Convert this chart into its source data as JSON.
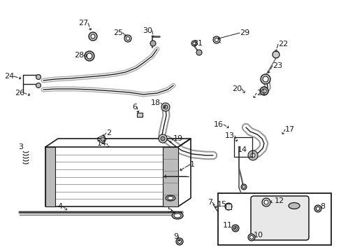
{
  "bg": "#ffffff",
  "lc": "#1a1a1a",
  "gray": "#888888",
  "lgray": "#cccccc",
  "labels": [
    [
      "1",
      270,
      238,
      275,
      243
    ],
    [
      "2",
      152,
      193,
      148,
      200
    ],
    [
      "3",
      35,
      216,
      38,
      222
    ],
    [
      "4",
      92,
      296,
      100,
      302
    ],
    [
      "5",
      248,
      302,
      253,
      308
    ],
    [
      "6",
      198,
      156,
      200,
      163
    ],
    [
      "7",
      306,
      291,
      313,
      300
    ],
    [
      "8",
      457,
      298,
      450,
      302
    ],
    [
      "9",
      258,
      342,
      258,
      347
    ],
    [
      "10",
      365,
      340,
      365,
      346
    ],
    [
      "11",
      335,
      326,
      340,
      330
    ],
    [
      "12",
      393,
      290,
      385,
      295
    ],
    [
      "13",
      340,
      196,
      342,
      206
    ],
    [
      "14",
      155,
      207,
      160,
      213
    ],
    [
      "14",
      342,
      216,
      347,
      213
    ],
    [
      "15",
      327,
      296,
      333,
      300
    ],
    [
      "16",
      322,
      180,
      330,
      184
    ],
    [
      "17",
      408,
      187,
      405,
      192
    ],
    [
      "18",
      232,
      150,
      237,
      156
    ],
    [
      "19",
      247,
      201,
      243,
      207
    ],
    [
      "20",
      348,
      130,
      354,
      137
    ],
    [
      "21",
      367,
      136,
      363,
      142
    ],
    [
      "22",
      400,
      66,
      400,
      80
    ],
    [
      "23",
      393,
      97,
      393,
      106
    ],
    [
      "24",
      22,
      112,
      30,
      116
    ],
    [
      "25",
      178,
      50,
      184,
      55
    ],
    [
      "26",
      37,
      136,
      44,
      137
    ],
    [
      "27",
      128,
      36,
      132,
      45
    ],
    [
      "28",
      122,
      82,
      126,
      80
    ],
    [
      "29",
      345,
      50,
      340,
      55
    ],
    [
      "30",
      220,
      47,
      222,
      55
    ],
    [
      "31",
      278,
      65,
      283,
      68
    ]
  ]
}
